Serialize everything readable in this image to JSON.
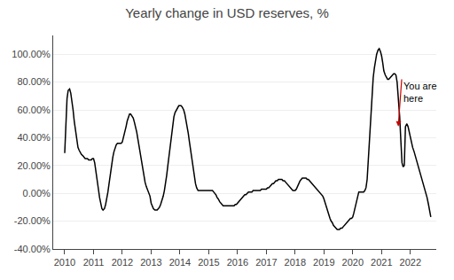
{
  "chart_data": {
    "type": "line",
    "title": "Yearly change in USD reserves, %",
    "color": "#000000",
    "grid": "y",
    "xlim": [
      2009.6,
      2022.9
    ],
    "xticks": [
      2010,
      2011,
      2012,
      2013,
      2014,
      2015,
      2016,
      2017,
      2018,
      2019,
      2020,
      2021,
      2022
    ],
    "ylim": [
      -0.4,
      1.135
    ],
    "yticks": [
      {
        "value": -0.4,
        "label": "-40.00%"
      },
      {
        "value": -0.2,
        "label": "-20.00%"
      },
      {
        "value": 0.0,
        "label": "0.00%"
      },
      {
        "value": 0.2,
        "label": "20.00%"
      },
      {
        "value": 0.4,
        "label": "40.00%"
      },
      {
        "value": 0.6,
        "label": "60.00%"
      },
      {
        "value": 0.8,
        "label": "80.00%"
      },
      {
        "value": 1.0,
        "label": "100.00%"
      }
    ],
    "annotations": [
      {
        "text": "You are\nhere",
        "x": 2021.58,
        "y": 0.48,
        "text_x": 2021.7,
        "text_y": 0.82,
        "color": "#cc0000"
      }
    ],
    "x": [
      2010.0,
      2010.04,
      2010.08,
      2010.12,
      2010.17,
      2010.21,
      2010.25,
      2010.29,
      2010.33,
      2010.38,
      2010.42,
      2010.46,
      2010.5,
      2010.54,
      2010.58,
      2010.63,
      2010.67,
      2010.71,
      2010.75,
      2010.79,
      2010.83,
      2010.88,
      2010.92,
      2010.96,
      2011.0,
      2011.04,
      2011.08,
      2011.13,
      2011.17,
      2011.21,
      2011.25,
      2011.29,
      2011.33,
      2011.38,
      2011.42,
      2011.46,
      2011.5,
      2011.54,
      2011.58,
      2011.63,
      2011.67,
      2011.71,
      2011.75,
      2011.79,
      2011.83,
      2011.88,
      2011.92,
      2011.96,
      2012.0,
      2012.04,
      2012.08,
      2012.13,
      2012.17,
      2012.21,
      2012.25,
      2012.29,
      2012.33,
      2012.38,
      2012.42,
      2012.46,
      2012.5,
      2012.54,
      2012.58,
      2012.63,
      2012.67,
      2012.71,
      2012.75,
      2012.79,
      2012.83,
      2012.88,
      2012.92,
      2012.96,
      2013.0,
      2013.04,
      2013.08,
      2013.13,
      2013.17,
      2013.21,
      2013.25,
      2013.29,
      2013.33,
      2013.38,
      2013.42,
      2013.46,
      2013.5,
      2013.54,
      2013.58,
      2013.63,
      2013.67,
      2013.71,
      2013.75,
      2013.79,
      2013.83,
      2013.88,
      2013.92,
      2013.96,
      2014.0,
      2014.04,
      2014.08,
      2014.13,
      2014.17,
      2014.21,
      2014.25,
      2014.29,
      2014.33,
      2014.38,
      2014.42,
      2014.46,
      2014.5,
      2014.54,
      2014.58,
      2014.63,
      2014.67,
      2014.71,
      2014.75,
      2014.79,
      2014.83,
      2014.88,
      2014.92,
      2014.96,
      2015.0,
      2015.04,
      2015.08,
      2015.13,
      2015.17,
      2015.21,
      2015.25,
      2015.29,
      2015.33,
      2015.38,
      2015.42,
      2015.46,
      2015.5,
      2015.54,
      2015.58,
      2015.63,
      2015.67,
      2015.71,
      2015.75,
      2015.79,
      2015.83,
      2015.88,
      2015.92,
      2015.96,
      2016.0,
      2016.04,
      2016.08,
      2016.13,
      2016.17,
      2016.21,
      2016.25,
      2016.29,
      2016.33,
      2016.38,
      2016.42,
      2016.46,
      2016.5,
      2016.54,
      2016.58,
      2016.63,
      2016.67,
      2016.71,
      2016.75,
      2016.79,
      2016.83,
      2016.88,
      2016.92,
      2016.96,
      2017.0,
      2017.04,
      2017.08,
      2017.13,
      2017.17,
      2017.21,
      2017.25,
      2017.29,
      2017.33,
      2017.38,
      2017.42,
      2017.46,
      2017.5,
      2017.54,
      2017.58,
      2017.63,
      2017.67,
      2017.71,
      2017.75,
      2017.79,
      2017.83,
      2017.88,
      2017.92,
      2017.96,
      2018.0,
      2018.04,
      2018.08,
      2018.13,
      2018.17,
      2018.21,
      2018.25,
      2018.29,
      2018.33,
      2018.38,
      2018.42,
      2018.46,
      2018.5,
      2018.54,
      2018.58,
      2018.63,
      2018.67,
      2018.71,
      2018.75,
      2018.79,
      2018.83,
      2018.88,
      2018.92,
      2018.96,
      2019.0,
      2019.04,
      2019.08,
      2019.13,
      2019.17,
      2019.21,
      2019.25,
      2019.29,
      2019.33,
      2019.38,
      2019.42,
      2019.46,
      2019.5,
      2019.54,
      2019.58,
      2019.63,
      2019.67,
      2019.71,
      2019.75,
      2019.79,
      2019.83,
      2019.88,
      2019.92,
      2019.96,
      2020.0,
      2020.04,
      2020.08,
      2020.13,
      2020.17,
      2020.21,
      2020.25,
      2020.29,
      2020.33,
      2020.38,
      2020.42,
      2020.46,
      2020.5,
      2020.54,
      2020.58,
      2020.63,
      2020.67,
      2020.71,
      2020.75,
      2020.79,
      2020.83,
      2020.88,
      2020.92,
      2020.96,
      2021.0,
      2021.04,
      2021.08,
      2021.13,
      2021.17,
      2021.21,
      2021.25,
      2021.29,
      2021.33,
      2021.38,
      2021.42,
      2021.46,
      2021.5,
      2021.54,
      2021.58,
      2021.63,
      2021.67,
      2021.71,
      2021.75,
      2021.79,
      2021.83,
      2021.88,
      2021.92,
      2021.96,
      2022.0,
      2022.04,
      2022.08,
      2022.13,
      2022.17,
      2022.21,
      2022.25,
      2022.29,
      2022.33,
      2022.38,
      2022.42,
      2022.46,
      2022.5,
      2022.54,
      2022.58,
      2022.63,
      2022.67,
      2022.71
    ],
    "values": [
      0.29,
      0.5,
      0.68,
      0.74,
      0.75,
      0.72,
      0.67,
      0.6,
      0.52,
      0.45,
      0.38,
      0.33,
      0.31,
      0.29,
      0.28,
      0.27,
      0.26,
      0.25,
      0.25,
      0.25,
      0.24,
      0.24,
      0.24,
      0.25,
      0.25,
      0.22,
      0.17,
      0.1,
      0.03,
      -0.03,
      -0.08,
      -0.11,
      -0.12,
      -0.11,
      -0.08,
      -0.04,
      0.01,
      0.07,
      0.14,
      0.2,
      0.26,
      0.3,
      0.33,
      0.35,
      0.36,
      0.36,
      0.36,
      0.36,
      0.37,
      0.4,
      0.44,
      0.48,
      0.52,
      0.55,
      0.57,
      0.57,
      0.56,
      0.54,
      0.51,
      0.48,
      0.44,
      0.39,
      0.34,
      0.28,
      0.22,
      0.17,
      0.12,
      0.08,
      0.05,
      0.02,
      0.0,
      -0.02,
      -0.07,
      -0.09,
      -0.11,
      -0.12,
      -0.12,
      -0.12,
      -0.11,
      -0.1,
      -0.08,
      -0.05,
      -0.02,
      0.02,
      0.07,
      0.13,
      0.2,
      0.28,
      0.36,
      0.44,
      0.5,
      0.55,
      0.58,
      0.6,
      0.62,
      0.63,
      0.63,
      0.63,
      0.62,
      0.6,
      0.57,
      0.53,
      0.48,
      0.43,
      0.37,
      0.3,
      0.23,
      0.17,
      0.11,
      0.07,
      0.04,
      0.02,
      0.02,
      0.02,
      0.02,
      0.02,
      0.02,
      0.02,
      0.02,
      0.02,
      0.02,
      0.02,
      0.02,
      0.02,
      0.01,
      0.0,
      -0.01,
      -0.03,
      -0.04,
      -0.06,
      -0.07,
      -0.08,
      -0.09,
      -0.09,
      -0.09,
      -0.09,
      -0.09,
      -0.09,
      -0.09,
      -0.09,
      -0.09,
      -0.09,
      -0.08,
      -0.08,
      -0.07,
      -0.06,
      -0.05,
      -0.04,
      -0.03,
      -0.02,
      -0.01,
      -0.01,
      0.0,
      0.01,
      0.01,
      0.01,
      0.01,
      0.02,
      0.02,
      0.02,
      0.02,
      0.02,
      0.02,
      0.02,
      0.03,
      0.03,
      0.03,
      0.03,
      0.03,
      0.04,
      0.04,
      0.05,
      0.06,
      0.07,
      0.07,
      0.08,
      0.09,
      0.09,
      0.1,
      0.1,
      0.1,
      0.1,
      0.09,
      0.09,
      0.08,
      0.07,
      0.06,
      0.05,
      0.04,
      0.03,
      0.02,
      0.02,
      0.02,
      0.03,
      0.05,
      0.07,
      0.09,
      0.1,
      0.11,
      0.11,
      0.11,
      0.11,
      0.1,
      0.1,
      0.09,
      0.08,
      0.07,
      0.06,
      0.05,
      0.04,
      0.03,
      0.02,
      0.01,
      0.0,
      -0.01,
      -0.02,
      -0.04,
      -0.07,
      -0.1,
      -0.13,
      -0.16,
      -0.18,
      -0.2,
      -0.21,
      -0.23,
      -0.24,
      -0.25,
      -0.26,
      -0.26,
      -0.26,
      -0.25,
      -0.25,
      -0.24,
      -0.23,
      -0.22,
      -0.21,
      -0.2,
      -0.19,
      -0.18,
      -0.18,
      -0.17,
      -0.14,
      -0.1,
      -0.05,
      -0.01,
      0.01,
      0.01,
      0.01,
      0.01,
      0.01,
      0.02,
      0.04,
      0.1,
      0.25,
      0.42,
      0.58,
      0.72,
      0.83,
      0.9,
      0.96,
      1.0,
      1.03,
      1.04,
      1.02,
      0.99,
      0.94,
      0.88,
      0.85,
      0.83,
      0.82,
      0.82,
      0.83,
      0.84,
      0.85,
      0.86,
      0.86,
      0.85,
      0.8,
      0.7,
      0.55,
      0.38,
      0.22,
      0.19,
      0.2,
      0.48,
      0.5,
      0.48,
      0.44,
      0.4,
      0.36,
      0.33,
      0.3,
      0.27,
      0.24,
      0.21,
      0.18,
      0.15,
      0.12,
      0.09,
      0.06,
      0.03,
      0.01,
      -0.03,
      -0.08,
      -0.13,
      -0.17
    ]
  }
}
